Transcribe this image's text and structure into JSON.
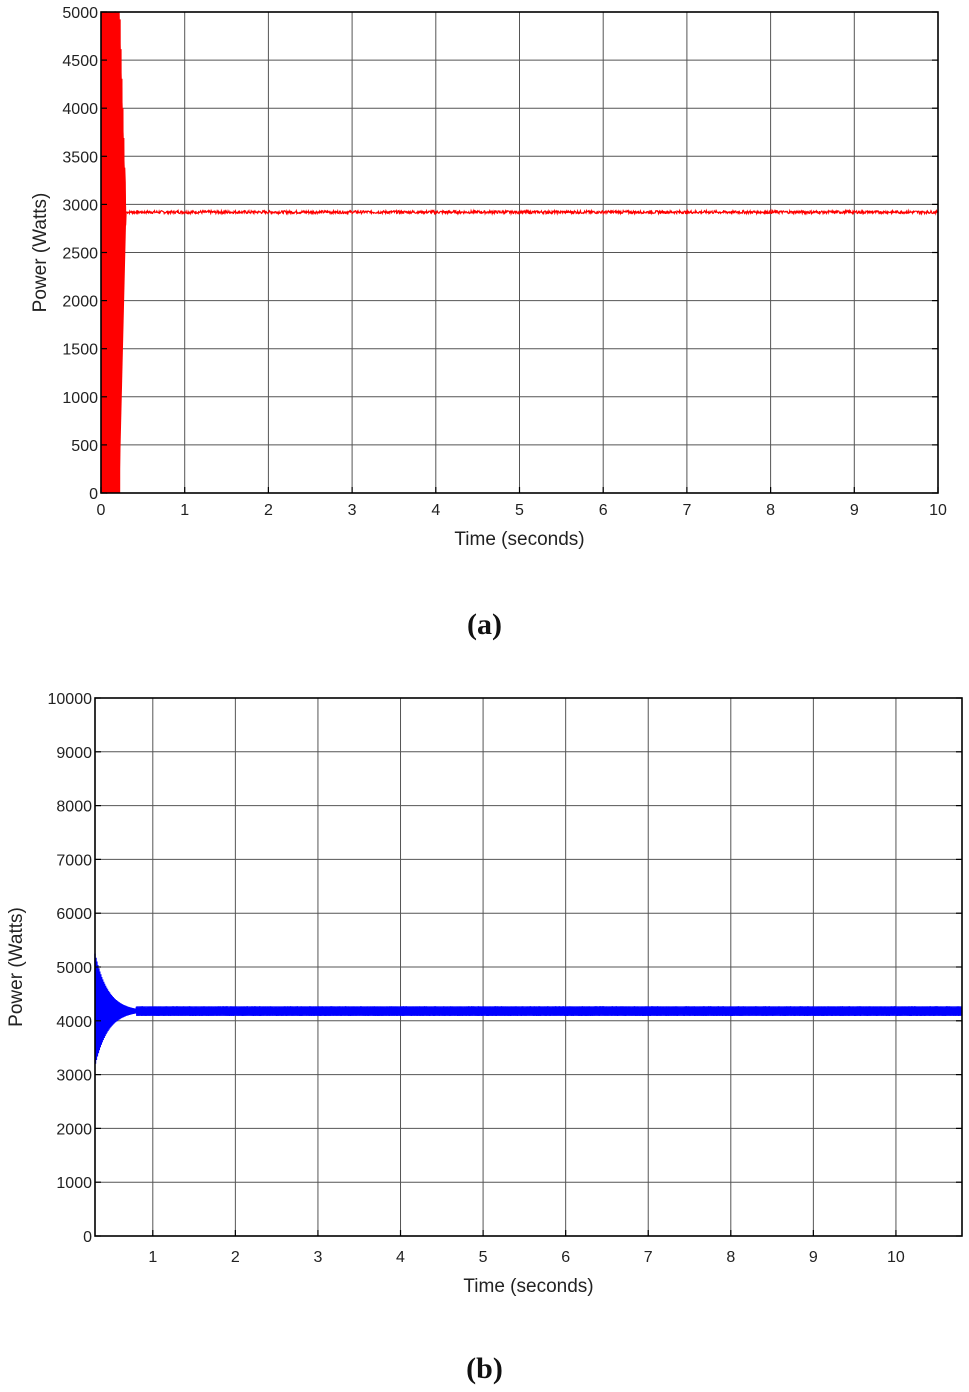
{
  "figure": {
    "panel_a_caption": "(a)",
    "panel_b_caption": "(b)"
  },
  "chart_data": [
    {
      "id": "a",
      "type": "line",
      "title": "",
      "xlabel": "Time (seconds)",
      "ylabel": "Power (Watts)",
      "xlim": [
        0,
        10
      ],
      "ylim": [
        0,
        5000
      ],
      "xticks": [
        0,
        1,
        2,
        3,
        4,
        5,
        6,
        7,
        8,
        9,
        10
      ],
      "yticks": [
        0,
        500,
        1000,
        1500,
        2000,
        2500,
        3000,
        3500,
        4000,
        4500,
        5000
      ],
      "grid": true,
      "legend": null,
      "color": "#ff0000",
      "series": [
        {
          "name": "Power",
          "description": "Large oscillation filling 0-5000 W from t=0 to ~0.25 s, then settles quickly to ~2920 W steady state with minor ripple",
          "transient": {
            "t_start": 0,
            "t_end": 0.3,
            "min": 0,
            "max": 5000
          },
          "x": [
            0,
            0.1,
            0.2,
            0.25,
            0.3,
            1,
            2,
            3,
            4,
            5,
            6,
            7,
            8,
            9,
            10
          ],
          "values": [
            0,
            5000,
            5000,
            3500,
            2930,
            2920,
            2910,
            2920,
            2925,
            2920,
            2920,
            2920,
            2925,
            2915,
            2920
          ],
          "steady_state": 2920
        }
      ]
    },
    {
      "id": "b",
      "type": "line",
      "title": "",
      "xlabel": "Time (seconds)",
      "ylabel": "Power (Watts)",
      "xlim": [
        0.3,
        10.8
      ],
      "ylim": [
        0,
        10000
      ],
      "xticks": [
        1,
        2,
        3,
        4,
        5,
        6,
        7,
        8,
        9,
        10
      ],
      "yticks": [
        0,
        1000,
        2000,
        3000,
        4000,
        5000,
        6000,
        7000,
        8000,
        9000,
        10000
      ],
      "grid": true,
      "legend": null,
      "color": "#0000ff",
      "series": [
        {
          "name": "Power",
          "description": "Damped oscillation starting ~0.3 s between ~3200 and ~5250 W, settling by ~0.8 s to a ripple band ~4100-4280 W (centre ~4180 W)",
          "transient": {
            "t_start": 0.3,
            "t_end": 0.8,
            "min": 3200,
            "max": 5250
          },
          "x": [
            0.3,
            0.35,
            0.4,
            0.45,
            0.5,
            0.6,
            0.7,
            0.8,
            1,
            2,
            3,
            4,
            5,
            6,
            7,
            8,
            9,
            10,
            10.8
          ],
          "values": [
            3200,
            5250,
            3400,
            4800,
            3800,
            4450,
            4000,
            4250,
            4180,
            4180,
            4180,
            4180,
            4180,
            4180,
            4180,
            4180,
            4180,
            4180,
            4180
          ],
          "steady_band": [
            4100,
            4280
          ],
          "steady_state": 4180
        }
      ]
    }
  ]
}
